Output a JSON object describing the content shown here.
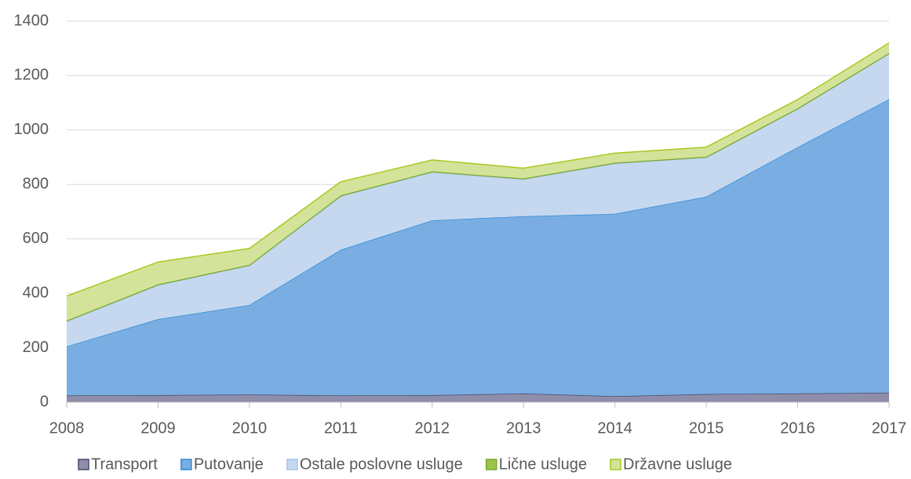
{
  "chart_data": {
    "type": "area",
    "stacked": true,
    "categories": [
      "2008",
      "2009",
      "2010",
      "2011",
      "2012",
      "2013",
      "2014",
      "2015",
      "2016",
      "2017"
    ],
    "series": [
      {
        "name": "Transport",
        "color": "#8e8eab",
        "values": [
          25,
          26,
          28,
          25,
          26,
          32,
          22,
          30,
          32,
          35
        ]
      },
      {
        "name": "Putovanje",
        "color": "#7aaee3",
        "values": [
          180,
          279,
          329,
          535,
          642,
          651,
          670,
          725,
          905,
          1078
        ]
      },
      {
        "name": "Ostale poslovne usluge",
        "color": "#c5d8f0",
        "values": [
          92,
          125,
          145,
          197,
          177,
          136,
          185,
          144,
          140,
          167
        ]
      },
      {
        "name": "Lične usluge",
        "color": "#9bc44a",
        "values": [
          3,
          3,
          3,
          3,
          3,
          3,
          3,
          3,
          3,
          3
        ]
      },
      {
        "name": "Državne usluge",
        "color": "#d4e39a",
        "values": [
          90,
          82,
          60,
          50,
          42,
          38,
          35,
          35,
          32,
          37
        ]
      }
    ],
    "ylim": [
      0,
      1400
    ],
    "yticks": [
      0,
      200,
      400,
      600,
      800,
      1000,
      1200,
      1400
    ],
    "grid": true,
    "legend": "bottom"
  }
}
